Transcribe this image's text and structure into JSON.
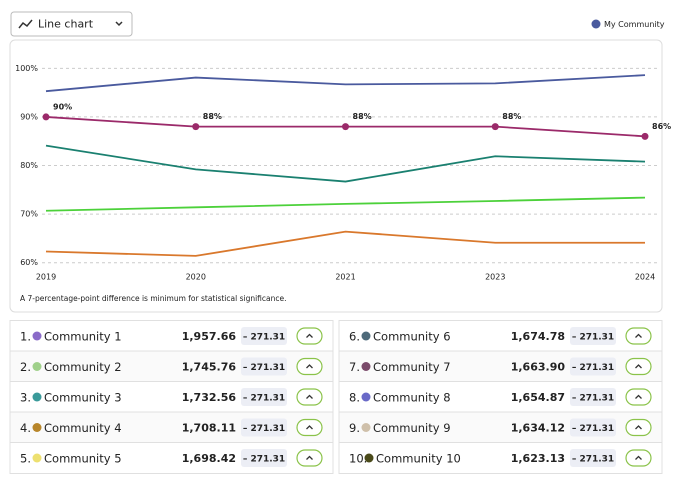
{
  "dropdown": {
    "label": "Line chart"
  },
  "chart_data": {
    "type": "line",
    "categories": [
      "2019",
      "2020",
      "2021",
      "2023",
      "2024"
    ],
    "ylim": [
      58.5,
      104.8
    ],
    "yticks": [
      {
        "value": 60,
        "label": "60%"
      },
      {
        "value": 70,
        "label": "70%"
      },
      {
        "value": 80,
        "label": "80%"
      },
      {
        "value": 90,
        "label": "90%"
      },
      {
        "value": 100,
        "label": "100%"
      }
    ],
    "grid": true,
    "legend": "top-right",
    "series": [
      {
        "name": "My Community",
        "color": "#4a5a9e",
        "values": [
          95.3,
          98.1,
          96.7,
          96.9,
          98.6
        ]
      },
      {
        "color": "#9b2a6a",
        "values": [
          90,
          88,
          88,
          88,
          86
        ],
        "value_labels": [
          "90%",
          "88%",
          "88%",
          "88%",
          "86%"
        ],
        "markers": true
      },
      {
        "color": "#1a8070",
        "values": [
          84.1,
          79.2,
          76.7,
          81.9,
          80.8
        ]
      },
      {
        "color": "#4cd13a",
        "values": [
          70.7,
          71.4,
          72.1,
          72.7,
          73.4
        ]
      },
      {
        "color": "#d9782c",
        "values": [
          62.3,
          61.4,
          66.4,
          64.1,
          64.1
        ]
      }
    ],
    "note": "A 7-percentage-point difference is minimum for statistical significance."
  },
  "communities": [
    {
      "rank": "1.",
      "name": "Community 1",
      "color": "#8a6bc8",
      "value": "1,957.66",
      "delta": "– 271.31"
    },
    {
      "rank": "2.",
      "name": "Community 2",
      "color": "#9fd08a",
      "value": "1,745.76",
      "delta": "– 271.31"
    },
    {
      "rank": "3.",
      "name": "Community 3",
      "color": "#3a9a9a",
      "value": "1,732.56",
      "delta": "– 271.31"
    },
    {
      "rank": "4.",
      "name": "Community 4",
      "color": "#b8862a",
      "value": "1,708.11",
      "delta": "– 271.31"
    },
    {
      "rank": "5.",
      "name": "Community 5",
      "color": "#ede070",
      "value": "1,698.42",
      "delta": "– 271.31"
    },
    {
      "rank": "6.",
      "name": "Community 6",
      "color": "#4e6a7a",
      "value": "1,674.78",
      "delta": "– 271.31"
    },
    {
      "rank": "7.",
      "name": "Community 7",
      "color": "#7a4a6a",
      "value": "1,663.90",
      "delta": "– 271.31"
    },
    {
      "rank": "8.",
      "name": "Community 8",
      "color": "#6a6ac8",
      "value": "1,654.87",
      "delta": "– 271.31"
    },
    {
      "rank": "9.",
      "name": "Community 9",
      "color": "#cfc0aa",
      "value": "1,634.12",
      "delta": "– 271.31"
    },
    {
      "rank": "10.",
      "name": "Community 10",
      "color": "#4a4a1a",
      "value": "1,623.13",
      "delta": "– 271.31"
    }
  ]
}
